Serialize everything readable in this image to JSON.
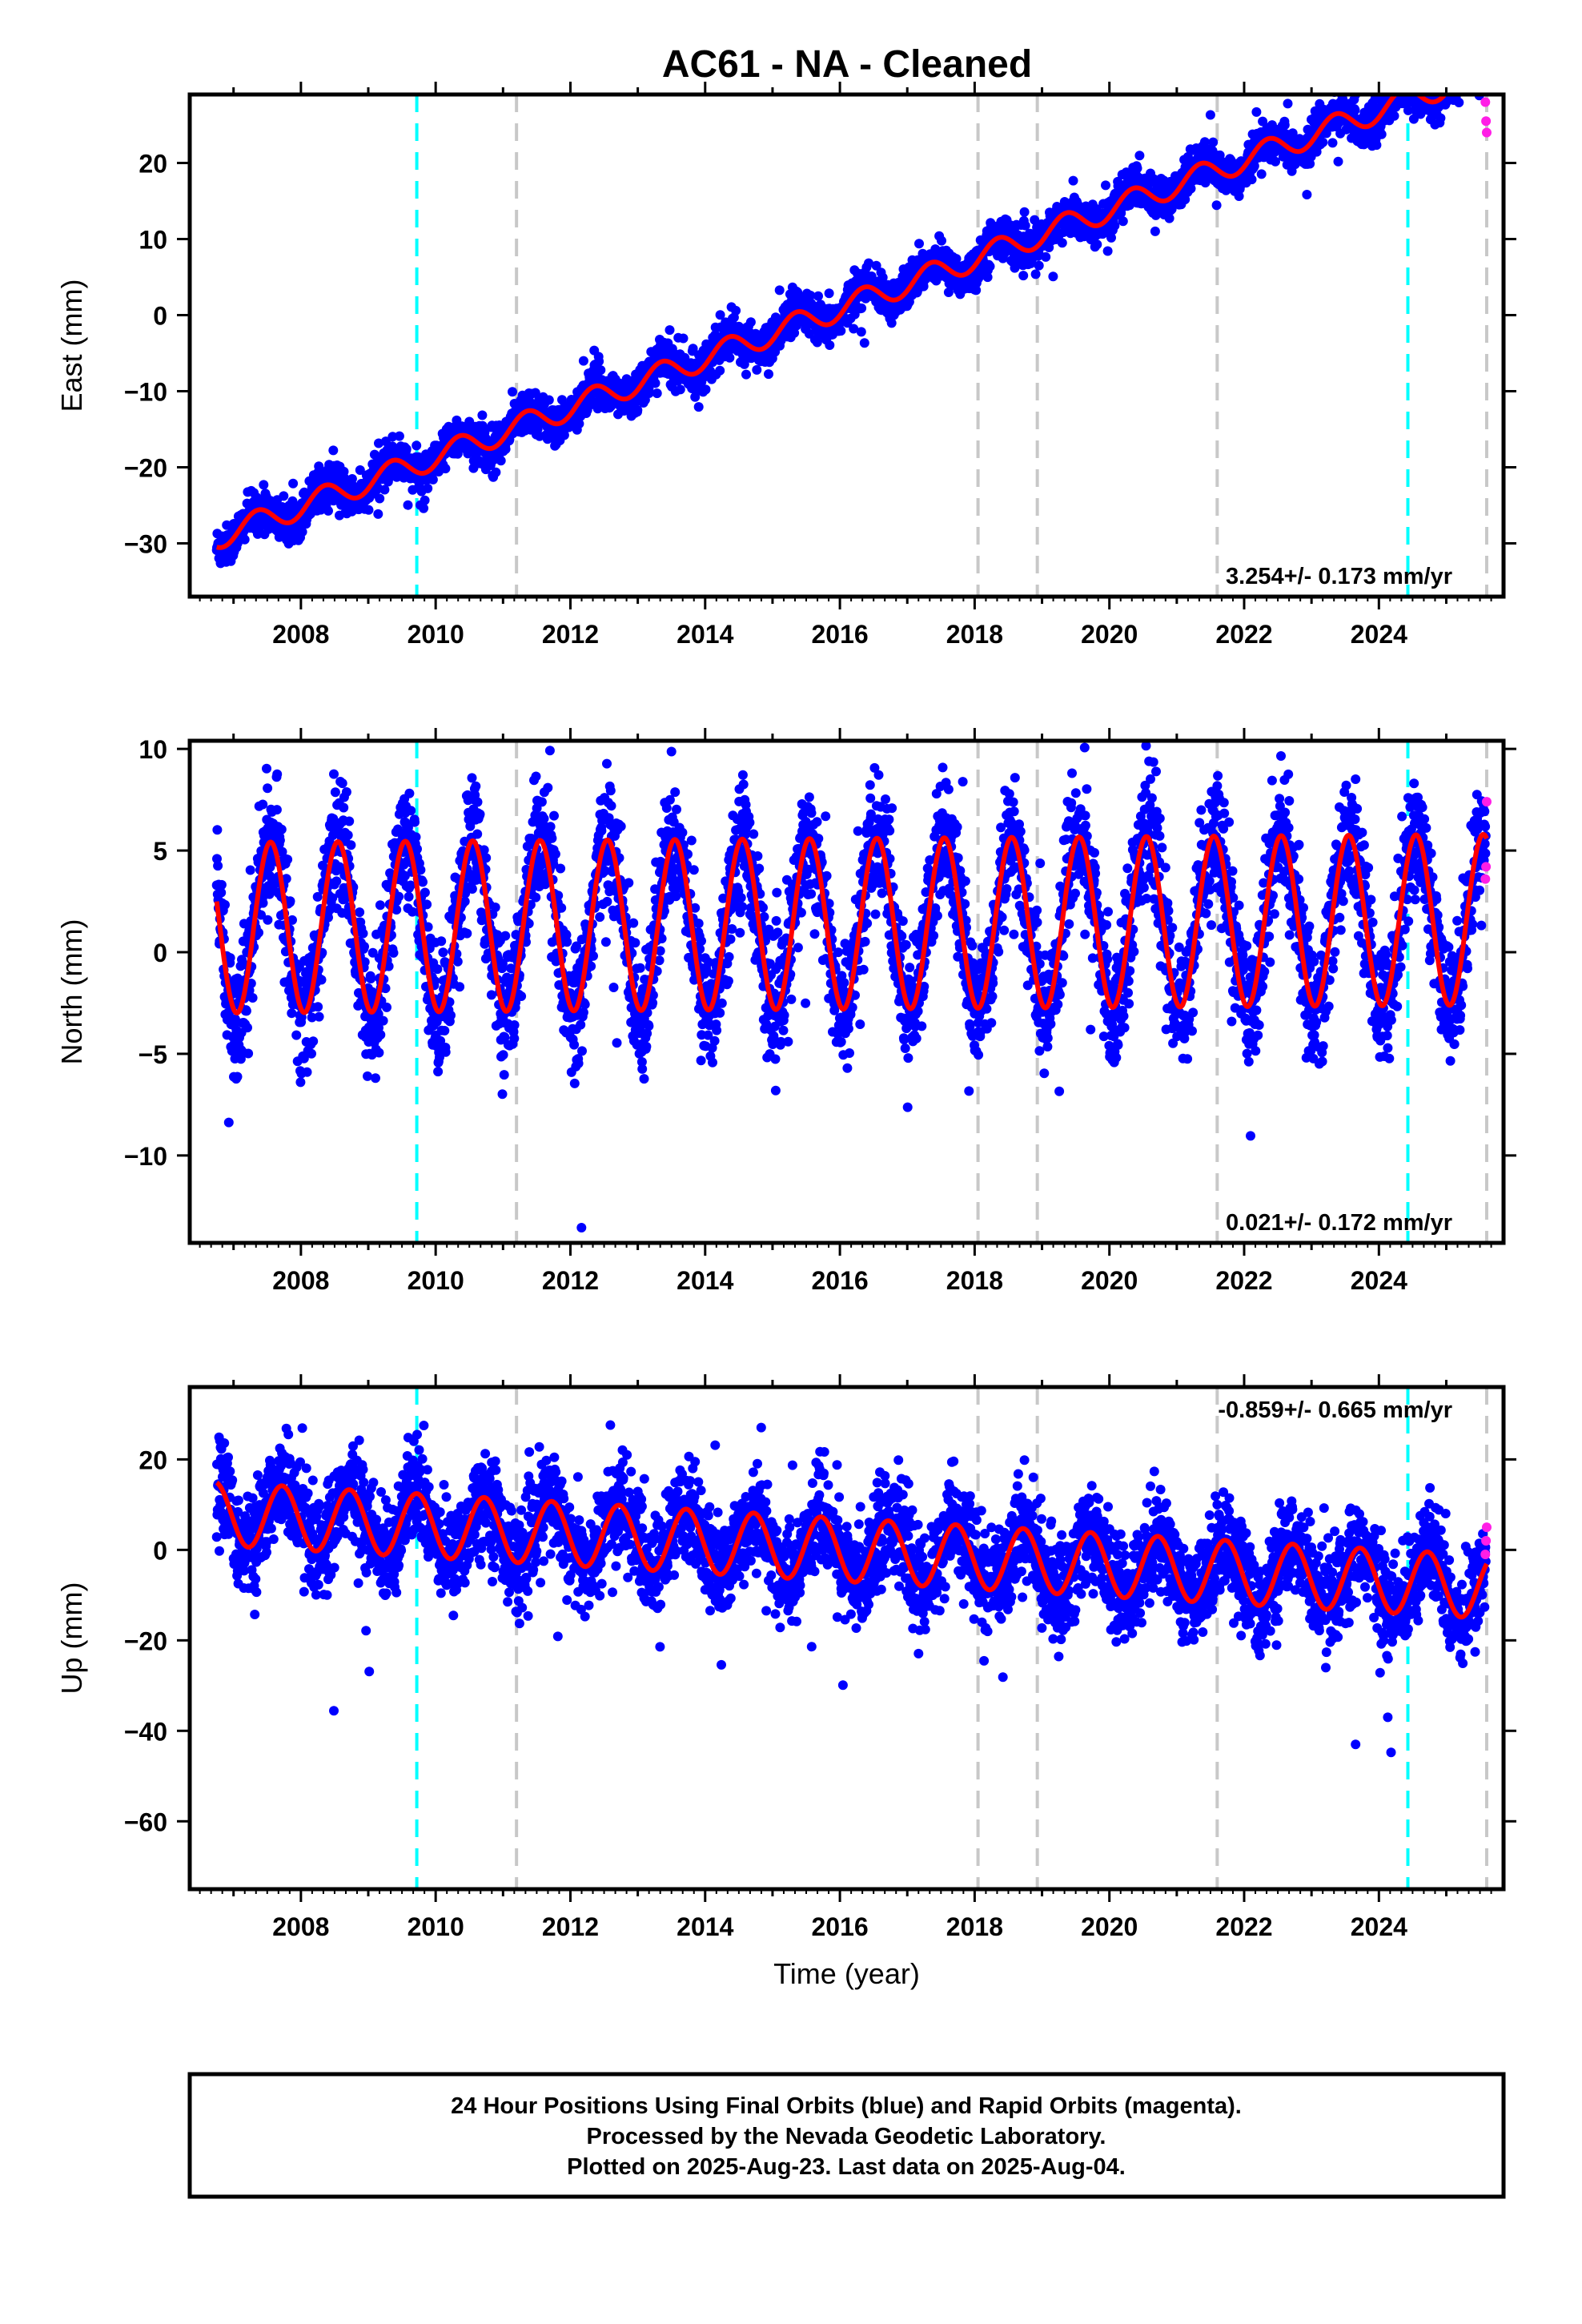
{
  "title": "AC61  - NA - Cleaned",
  "colors": {
    "final_orbits": "#0000ff",
    "rapid_orbits": "#ff1ee6",
    "model": "#ff0000",
    "equipment_change": "#00ffff",
    "earthquake": "#c8c8c8",
    "frame": "#000000"
  },
  "chart_data": [
    {
      "type": "scatter",
      "component": "East",
      "ylabel": "East (mm)",
      "xlabel": "",
      "xlim": [
        2006.35,
        2025.85
      ],
      "ylim": [
        -37,
        29
      ],
      "xticks": [
        2008,
        2010,
        2012,
        2014,
        2016,
        2018,
        2020,
        2022,
        2024
      ],
      "yticks": [
        -30,
        -20,
        -10,
        0,
        10,
        20
      ],
      "rate_label": "3.254+/- 0.173 mm/yr",
      "rate_position": "bottom-right",
      "model": {
        "start_year": 2006.75,
        "start_value": -29.2,
        "rate": 3.254,
        "annual_amplitude": 1.6,
        "annual_peak_phase": 0.35
      },
      "scatter_sd": 1.3,
      "rapid_points": [
        {
          "x": 2025.58,
          "y": 28.0
        },
        {
          "x": 2025.59,
          "y": 25.5
        },
        {
          "x": 2025.6,
          "y": 24.0
        }
      ],
      "grid": false
    },
    {
      "type": "scatter",
      "component": "North",
      "ylabel": "North (mm)",
      "xlabel": "",
      "xlim": [
        2006.35,
        2025.85
      ],
      "ylim": [
        -14.3,
        10.4
      ],
      "xticks": [
        2008,
        2010,
        2012,
        2014,
        2016,
        2018,
        2020,
        2022,
        2024
      ],
      "yticks": [
        -10,
        -5,
        0,
        5,
        10
      ],
      "rate_label": "0.021+/- 0.172 mm/yr",
      "rate_position": "bottom-right",
      "model": {
        "start_year": 2006.75,
        "start_value": 1.2,
        "rate": 0.021,
        "annual_amplitude": 4.2,
        "annual_peak_phase": 0.55
      },
      "scatter_sd": 1.5,
      "rapid_points": [
        {
          "x": 2025.6,
          "y": 7.4
        },
        {
          "x": 2025.59,
          "y": 4.2
        },
        {
          "x": 2025.58,
          "y": 3.6
        }
      ],
      "grid": false
    },
    {
      "type": "scatter",
      "component": "Up",
      "ylabel": "Up (mm)",
      "xlabel": "Time (year)",
      "xlim": [
        2006.35,
        2025.85
      ],
      "ylim": [
        -75,
        36
      ],
      "xticks": [
        2008,
        2010,
        2012,
        2014,
        2016,
        2018,
        2020,
        2022,
        2024
      ],
      "yticks": [
        -60,
        -40,
        -20,
        0,
        20
      ],
      "rate_label": "-0.859+/- 0.665 mm/yr",
      "rate_position": "top-right",
      "model": {
        "start_year": 2006.75,
        "start_value": 8.0,
        "rate": -0.859,
        "annual_amplitude": 7.0,
        "annual_peak_phase": 0.72
      },
      "scatter_sd": 5.5,
      "rapid_points": [
        {
          "x": 2025.6,
          "y": 5.0
        },
        {
          "x": 2025.59,
          "y": 2.0
        },
        {
          "x": 2025.58,
          "y": -1.0
        }
      ],
      "grid": false
    }
  ],
  "equipment_changes": [
    2009.72,
    2024.43
  ],
  "earthquakes": [
    2011.2,
    2018.05,
    2018.93,
    2021.6,
    2025.6
  ],
  "footer": {
    "line1": "24 Hour Positions Using Final Orbits (blue) and Rapid Orbits (magenta).",
    "line2": "Processed by the Nevada Geodetic Laboratory.",
    "line3": "Plotted on 2025-Aug-23. Last data on 2025-Aug-04."
  }
}
